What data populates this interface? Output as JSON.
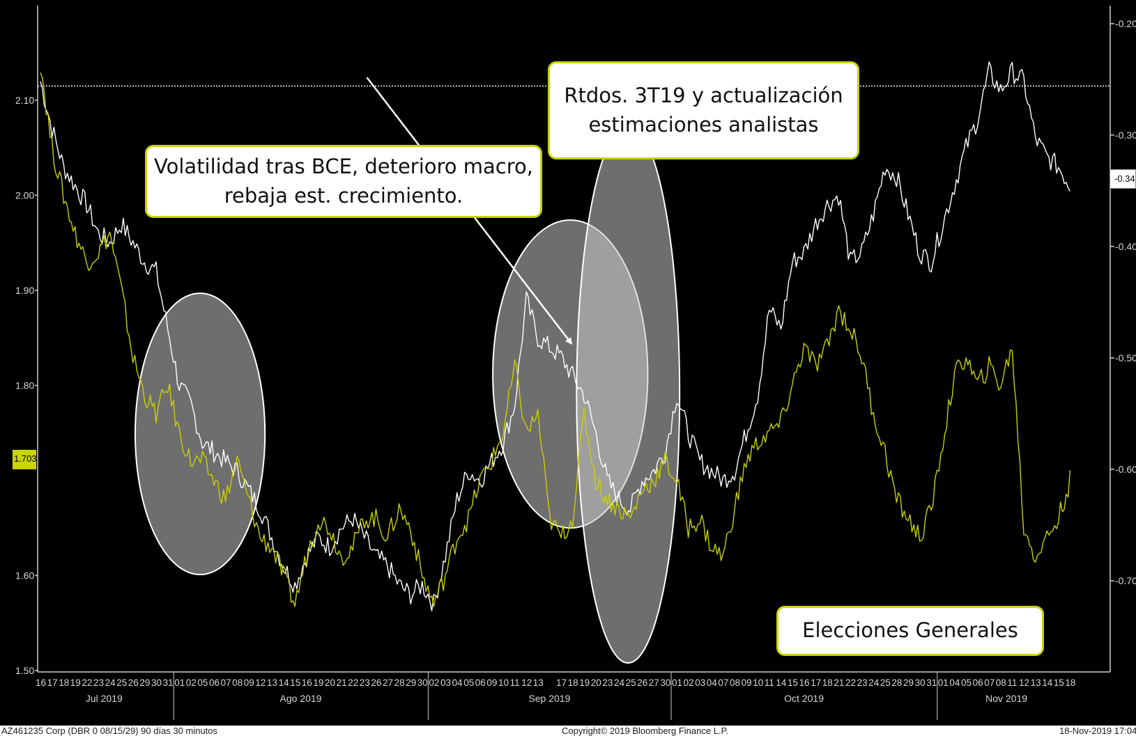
{
  "chart_data": {
    "type": "line",
    "left_axis": {
      "ticks": [
        "2.10",
        "2.00",
        "1.90",
        "1.80",
        "1.60",
        "1.50"
      ],
      "tick_values": [
        2.1,
        2.0,
        1.9,
        1.8,
        1.6,
        1.5
      ],
      "range": [
        1.48,
        2.2
      ]
    },
    "right_axis": {
      "ticks": [
        "-0.20",
        "-0.30",
        "-0.40",
        "-0.50",
        "-0.60",
        "-0.70"
      ],
      "tick_values": [
        -0.2,
        -0.3,
        -0.4,
        -0.5,
        -0.6,
        -0.7
      ]
    },
    "last_left_label": "1.703",
    "last_right_label": "-0.34",
    "reference_line": 2.115,
    "x_days": [
      "16",
      "17",
      "18",
      "19",
      "22",
      "23",
      "24",
      "25",
      "26",
      "29",
      "30",
      "31",
      "01",
      "02",
      "05",
      "06",
      "07",
      "08",
      "09",
      "12",
      "13",
      "14",
      "15",
      "16",
      "19",
      "20",
      "21",
      "22",
      "23",
      "26",
      "27",
      "28",
      "29",
      "30",
      "02",
      "03",
      "04",
      "05",
      "06",
      "09",
      "10",
      "11",
      "12",
      "13",
      "",
      "17",
      "18",
      "19",
      "20",
      "23",
      "24",
      "25",
      "26",
      "27",
      "30",
      "01",
      "02",
      "03",
      "04",
      "07",
      "08",
      "09",
      "10",
      "11",
      "14",
      "15",
      "16",
      "17",
      "18",
      "21",
      "22",
      "23",
      "24",
      "25",
      "28",
      "29",
      "30",
      "31",
      "01",
      "04",
      "05",
      "06",
      "07",
      "08",
      "11",
      "12",
      "13",
      "14",
      "15",
      "18"
    ],
    "x_months": [
      "Jul 2019",
      "Ago 2019",
      "Sep 2019",
      "Oct 2019",
      "Nov 2019"
    ],
    "series": [
      {
        "color": "#ffffff",
        "values": [
          2.12,
          2.07,
          2.03,
          2.01,
          1.99,
          1.96,
          1.95,
          1.97,
          1.95,
          1.93,
          1.92,
          1.86,
          1.8,
          1.78,
          1.74,
          1.73,
          1.72,
          1.71,
          1.69,
          1.67,
          1.64,
          1.61,
          1.59,
          1.62,
          1.64,
          1.63,
          1.65,
          1.66,
          1.64,
          1.62,
          1.61,
          1.59,
          1.58,
          1.59,
          1.57,
          1.62,
          1.68,
          1.71,
          1.7,
          1.72,
          1.74,
          1.78,
          1.89,
          1.85,
          1.84,
          1.83,
          1.81,
          1.79,
          1.75,
          1.7,
          1.68,
          1.67,
          1.7,
          1.71,
          1.73,
          1.79,
          1.75,
          1.72,
          1.71,
          1.7,
          1.71,
          1.75,
          1.79,
          1.88,
          1.86,
          1.93,
          1.94,
          1.97,
          1.99,
          2.0,
          1.93,
          1.94,
          1.98,
          2.03,
          2.02,
          1.98,
          1.94,
          1.93,
          1.97,
          2.01,
          2.05,
          2.08,
          2.13,
          2.11,
          2.13,
          2.12,
          2.06,
          2.04,
          2.03,
          2.01
        ]
      },
      {
        "color": "#c8d200",
        "values": [
          2.14,
          2.05,
          2.0,
          1.96,
          1.93,
          1.94,
          1.96,
          1.9,
          1.83,
          1.79,
          1.77,
          1.8,
          1.75,
          1.72,
          1.72,
          1.7,
          1.68,
          1.72,
          1.68,
          1.64,
          1.63,
          1.6,
          1.57,
          1.62,
          1.66,
          1.65,
          1.62,
          1.63,
          1.66,
          1.66,
          1.64,
          1.67,
          1.65,
          1.6,
          1.57,
          1.6,
          1.64,
          1.66,
          1.7,
          1.72,
          1.75,
          1.82,
          1.75,
          1.77,
          1.66,
          1.64,
          1.66,
          1.77,
          1.7,
          1.68,
          1.67,
          1.66,
          1.69,
          1.7,
          1.72,
          1.7,
          1.65,
          1.66,
          1.63,
          1.62,
          1.67,
          1.72,
          1.74,
          1.75,
          1.76,
          1.8,
          1.84,
          1.82,
          1.84,
          1.88,
          1.86,
          1.83,
          1.77,
          1.73,
          1.68,
          1.66,
          1.64,
          1.67,
          1.74,
          1.81,
          1.83,
          1.8,
          1.82,
          1.8,
          1.84,
          1.65,
          1.62,
          1.64,
          1.66,
          1.7
        ]
      }
    ],
    "ellipses": [
      {
        "center": [
          13.8,
          1.749
        ],
        "radius": [
          1.65,
          1.48
        ]
      },
      {
        "center": [
          45.8,
          1.812
        ],
        "radius": [
          1.97,
          1.62
        ]
      },
      {
        "center": [
          50.8,
          1.791
        ],
        "radius": [
          1.31,
          2.83
        ]
      }
    ],
    "arrows": [
      {
        "from": [
          8.3,
          2.124
        ],
        "to": [
          13.5,
          1.844
        ]
      },
      {
        "from": [
          30.8,
          2.237
        ],
        "to": [
          38.9,
          2.007
        ]
      },
      {
        "from": [
          46.6,
          1.549
        ],
        "to": [
          54.6,
          1.639
        ]
      }
    ]
  },
  "annotations": [
    {
      "text": "Volatilidad tras BCE, deterioro macro, rebaja est. crecimiento."
    },
    {
      "text": "Rtdos. 3T19 y actualización estimaciones analistas"
    },
    {
      "text": "Elecciones Generales"
    }
  ],
  "footer": {
    "left": "AZ461235 Corp (DBR 0 08/15/29) 90 días 30 minutos",
    "center": "Copyright© 2019 Bloomberg Finance L.P.",
    "right": "18-Nov-2019 17:04:"
  }
}
